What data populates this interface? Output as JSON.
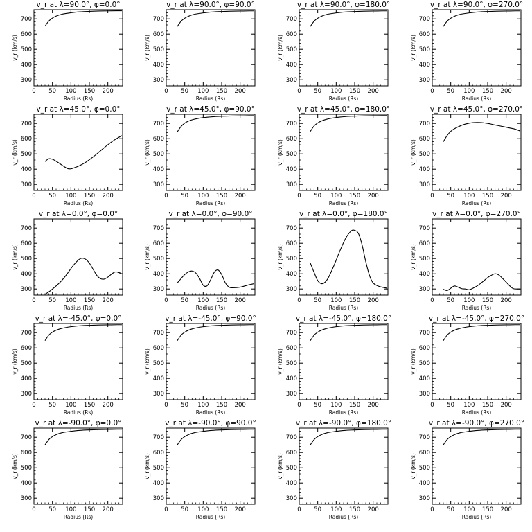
{
  "figure": {
    "xlabel": "Radius (Rs)",
    "ylabel": "v_r (km/s)"
  },
  "chart_data": [
    {
      "type": "line",
      "title": "v_r at λ=90.0°, φ=0.0°",
      "xlabel": "Radius (Rs)",
      "ylabel": "v_r (km/s)",
      "xlim": [
        0,
        240
      ],
      "ylim": [
        260,
        760
      ],
      "xticks": [
        0,
        50,
        100,
        150,
        200
      ],
      "yticks": [
        300,
        400,
        500,
        600,
        700
      ],
      "x": [
        30,
        40,
        50,
        60,
        75,
        100,
        125,
        150,
        175,
        200,
        225,
        238
      ],
      "y": [
        652,
        685,
        705,
        718,
        730,
        740,
        746,
        749,
        751,
        752,
        753,
        753
      ]
    },
    {
      "type": "line",
      "title": "v_r at λ=90.0°, φ=90.0°",
      "xlabel": "Radius (Rs)",
      "ylabel": "v_r (km/s)",
      "xlim": [
        0,
        240
      ],
      "ylim": [
        260,
        760
      ],
      "xticks": [
        0,
        50,
        100,
        150,
        200
      ],
      "yticks": [
        300,
        400,
        500,
        600,
        700
      ],
      "x": [
        30,
        40,
        50,
        60,
        75,
        100,
        125,
        150,
        175,
        200,
        225,
        238
      ],
      "y": [
        650,
        684,
        704,
        717,
        729,
        739,
        745,
        748,
        750,
        751,
        752,
        752
      ]
    },
    {
      "type": "line",
      "title": "v_r at λ=90.0°, φ=180.0°",
      "xlabel": "Radius (Rs)",
      "ylabel": "v_r (km/s)",
      "xlim": [
        0,
        240
      ],
      "ylim": [
        260,
        760
      ],
      "xticks": [
        0,
        50,
        100,
        150,
        200
      ],
      "yticks": [
        300,
        400,
        500,
        600,
        700
      ],
      "x": [
        30,
        40,
        50,
        60,
        75,
        100,
        125,
        150,
        175,
        200,
        225,
        238
      ],
      "y": [
        650,
        684,
        704,
        717,
        729,
        739,
        745,
        748,
        750,
        751,
        752,
        752
      ]
    },
    {
      "type": "line",
      "title": "v_r at λ=90.0°, φ=270.0°",
      "xlabel": "Radius (Rs)",
      "ylabel": "v_r (km/s)",
      "xlim": [
        0,
        240
      ],
      "ylim": [
        260,
        760
      ],
      "xticks": [
        0,
        50,
        100,
        150,
        200
      ],
      "yticks": [
        300,
        400,
        500,
        600,
        700
      ],
      "x": [
        30,
        40,
        50,
        60,
        75,
        100,
        125,
        150,
        175,
        200,
        225,
        238
      ],
      "y": [
        650,
        684,
        704,
        717,
        729,
        739,
        745,
        748,
        750,
        751,
        752,
        752
      ]
    },
    {
      "type": "line",
      "title": "v_r at λ=45.0°, φ=0.0°",
      "xlabel": "Radius (Rs)",
      "ylabel": "v_r (km/s)",
      "xlim": [
        0,
        240
      ],
      "ylim": [
        260,
        760
      ],
      "xticks": [
        0,
        50,
        100,
        150,
        200
      ],
      "yticks": [
        300,
        400,
        500,
        600,
        700
      ],
      "x": [
        30,
        40,
        50,
        60,
        75,
        90,
        100,
        110,
        125,
        140,
        160,
        180,
        200,
        220,
        238
      ],
      "y": [
        450,
        468,
        465,
        452,
        428,
        405,
        402,
        410,
        425,
        445,
        480,
        520,
        560,
        595,
        620
      ]
    },
    {
      "type": "line",
      "title": "v_r at λ=45.0°, φ=90.0°",
      "xlabel": "Radius (Rs)",
      "ylabel": "v_r (km/s)",
      "xlim": [
        0,
        240
      ],
      "ylim": [
        260,
        760
      ],
      "xticks": [
        0,
        50,
        100,
        150,
        200
      ],
      "yticks": [
        300,
        400,
        500,
        600,
        700
      ],
      "x": [
        30,
        40,
        50,
        60,
        75,
        100,
        125,
        150,
        175,
        200,
        225,
        238
      ],
      "y": [
        645,
        680,
        702,
        715,
        727,
        738,
        744,
        747,
        749,
        750,
        751,
        751
      ]
    },
    {
      "type": "line",
      "title": "v_r at λ=45.0°, φ=180.0°",
      "xlabel": "Radius (Rs)",
      "ylabel": "v_r (km/s)",
      "xlim": [
        0,
        240
      ],
      "ylim": [
        260,
        760
      ],
      "xticks": [
        0,
        50,
        100,
        150,
        200
      ],
      "yticks": [
        300,
        400,
        500,
        600,
        700
      ],
      "x": [
        30,
        40,
        50,
        60,
        75,
        100,
        125,
        150,
        175,
        200,
        225,
        238
      ],
      "y": [
        648,
        683,
        703,
        716,
        728,
        739,
        745,
        748,
        750,
        751,
        752,
        752
      ]
    },
    {
      "type": "line",
      "title": "v_r at λ=45.0°, φ=270.0°",
      "xlabel": "Radius (Rs)",
      "ylabel": "v_r (km/s)",
      "xlim": [
        0,
        240
      ],
      "ylim": [
        260,
        760
      ],
      "xticks": [
        0,
        50,
        100,
        150,
        200
      ],
      "yticks": [
        300,
        400,
        500,
        600,
        700
      ],
      "x": [
        30,
        40,
        50,
        60,
        75,
        90,
        110,
        130,
        150,
        170,
        190,
        210,
        225,
        238
      ],
      "y": [
        580,
        620,
        648,
        665,
        683,
        696,
        705,
        706,
        700,
        690,
        680,
        670,
        662,
        650
      ]
    },
    {
      "type": "line",
      "title": "v_r at λ=0.0°, φ=0.0°",
      "xlabel": "Radius (Rs)",
      "ylabel": "v_r (km/s)",
      "xlim": [
        0,
        240
      ],
      "ylim": [
        260,
        760
      ],
      "xticks": [
        0,
        50,
        100,
        150,
        200
      ],
      "yticks": [
        300,
        400,
        500,
        600,
        700
      ],
      "x": [
        30,
        45,
        60,
        75,
        90,
        105,
        120,
        130,
        140,
        150,
        160,
        170,
        180,
        190,
        200,
        210,
        220,
        230,
        238
      ],
      "y": [
        265,
        290,
        320,
        355,
        400,
        450,
        490,
        502,
        495,
        470,
        430,
        390,
        368,
        365,
        378,
        398,
        412,
        408,
        400
      ]
    },
    {
      "type": "line",
      "title": "v_r at λ=0.0°, φ=90.0°",
      "xlabel": "Radius (Rs)",
      "ylabel": "v_r (km/s)",
      "xlim": [
        0,
        240
      ],
      "ylim": [
        260,
        760
      ],
      "xticks": [
        0,
        50,
        100,
        150,
        200
      ],
      "yticks": [
        300,
        400,
        500,
        600,
        700
      ],
      "x": [
        30,
        40,
        50,
        60,
        70,
        80,
        90,
        100,
        110,
        120,
        130,
        140,
        150,
        160,
        170,
        180,
        200,
        220,
        238
      ],
      "y": [
        340,
        368,
        395,
        412,
        418,
        405,
        370,
        325,
        320,
        360,
        410,
        425,
        395,
        340,
        312,
        308,
        312,
        325,
        335
      ]
    },
    {
      "type": "line",
      "title": "v_r at λ=0.0°, φ=180.0°",
      "xlabel": "Radius (Rs)",
      "ylabel": "v_r (km/s)",
      "xlim": [
        0,
        240
      ],
      "ylim": [
        260,
        760
      ],
      "xticks": [
        0,
        50,
        100,
        150,
        200
      ],
      "yticks": [
        300,
        400,
        500,
        600,
        700
      ],
      "x": [
        30,
        40,
        50,
        60,
        70,
        80,
        95,
        110,
        125,
        140,
        150,
        160,
        170,
        180,
        190,
        200,
        215,
        238
      ],
      "y": [
        470,
        410,
        355,
        335,
        345,
        380,
        460,
        550,
        630,
        680,
        685,
        665,
        590,
        480,
        390,
        340,
        318,
        305
      ]
    },
    {
      "type": "line",
      "title": "v_r at λ=0.0°, φ=270.0°",
      "xlabel": "Radius (Rs)",
      "ylabel": "v_r (km/s)",
      "xlim": [
        0,
        240
      ],
      "ylim": [
        260,
        760
      ],
      "xticks": [
        0,
        50,
        100,
        150,
        200
      ],
      "yticks": [
        300,
        400,
        500,
        600,
        700
      ],
      "x": [
        30,
        40,
        50,
        60,
        70,
        80,
        90,
        100,
        110,
        120,
        130,
        140,
        150,
        160,
        170,
        180,
        190,
        200,
        210,
        220,
        238
      ],
      "y": [
        298,
        290,
        305,
        320,
        312,
        302,
        300,
        295,
        305,
        318,
        335,
        355,
        375,
        390,
        400,
        392,
        370,
        345,
        320,
        302,
        300
      ]
    },
    {
      "type": "line",
      "title": "v_r at λ=-45.0°, φ=0.0°",
      "xlabel": "Radius (Rs)",
      "ylabel": "v_r (km/s)",
      "xlim": [
        0,
        240
      ],
      "ylim": [
        260,
        760
      ],
      "xticks": [
        0,
        50,
        100,
        150,
        200
      ],
      "yticks": [
        300,
        400,
        500,
        600,
        700
      ],
      "x": [
        30,
        40,
        50,
        60,
        75,
        100,
        125,
        150,
        175,
        200,
        225,
        238
      ],
      "y": [
        648,
        683,
        703,
        716,
        728,
        739,
        745,
        748,
        750,
        751,
        752,
        752
      ]
    },
    {
      "type": "line",
      "title": "v_r at λ=-45.0°, φ=90.0°",
      "xlabel": "Radius (Rs)",
      "ylabel": "v_r (km/s)",
      "xlim": [
        0,
        240
      ],
      "ylim": [
        260,
        760
      ],
      "xticks": [
        0,
        50,
        100,
        150,
        200
      ],
      "yticks": [
        300,
        400,
        500,
        600,
        700
      ],
      "x": [
        30,
        40,
        50,
        60,
        75,
        100,
        125,
        150,
        175,
        200,
        225,
        238
      ],
      "y": [
        648,
        683,
        703,
        716,
        728,
        739,
        745,
        748,
        750,
        751,
        752,
        752
      ]
    },
    {
      "type": "line",
      "title": "v_r at λ=-45.0°, φ=180.0°",
      "xlabel": "Radius (Rs)",
      "ylabel": "v_r (km/s)",
      "xlim": [
        0,
        240
      ],
      "ylim": [
        260,
        760
      ],
      "xticks": [
        0,
        50,
        100,
        150,
        200
      ],
      "yticks": [
        300,
        400,
        500,
        600,
        700
      ],
      "x": [
        30,
        40,
        50,
        60,
        75,
        100,
        125,
        150,
        175,
        200,
        225,
        238
      ],
      "y": [
        648,
        683,
        703,
        716,
        728,
        739,
        745,
        748,
        750,
        751,
        752,
        752
      ]
    },
    {
      "type": "line",
      "title": "v_r at λ=-45.0°, φ=270.0°",
      "xlabel": "Radius (Rs)",
      "ylabel": "v_r (km/s)",
      "xlim": [
        0,
        240
      ],
      "ylim": [
        260,
        760
      ],
      "xticks": [
        0,
        50,
        100,
        150,
        200
      ],
      "yticks": [
        300,
        400,
        500,
        600,
        700
      ],
      "x": [
        30,
        40,
        50,
        60,
        75,
        100,
        125,
        150,
        175,
        200,
        225,
        238
      ],
      "y": [
        648,
        683,
        703,
        716,
        728,
        739,
        745,
        748,
        750,
        751,
        752,
        752
      ]
    },
    {
      "type": "line",
      "title": "v_r at λ=-90.0°, φ=0.0°",
      "xlabel": "Radius (Rs)",
      "ylabel": "v_r (km/s)",
      "xlim": [
        0,
        240
      ],
      "ylim": [
        260,
        760
      ],
      "xticks": [
        0,
        50,
        100,
        150,
        200
      ],
      "yticks": [
        300,
        400,
        500,
        600,
        700
      ],
      "x": [
        30,
        40,
        50,
        60,
        75,
        100,
        125,
        150,
        175,
        200,
        225,
        238
      ],
      "y": [
        650,
        684,
        704,
        717,
        729,
        739,
        745,
        748,
        750,
        751,
        752,
        752
      ]
    },
    {
      "type": "line",
      "title": "v_r at λ=-90.0°, φ=90.0°",
      "xlabel": "Radius (Rs)",
      "ylabel": "v_r (km/s)",
      "xlim": [
        0,
        240
      ],
      "ylim": [
        260,
        760
      ],
      "xticks": [
        0,
        50,
        100,
        150,
        200
      ],
      "yticks": [
        300,
        400,
        500,
        600,
        700
      ],
      "x": [
        30,
        40,
        50,
        60,
        75,
        100,
        125,
        150,
        175,
        200,
        225,
        238
      ],
      "y": [
        650,
        684,
        704,
        717,
        729,
        739,
        745,
        748,
        750,
        751,
        752,
        752
      ]
    },
    {
      "type": "line",
      "title": "v_r at λ=-90.0°, φ=180.0°",
      "xlabel": "Radius (Rs)",
      "ylabel": "v_r (km/s)",
      "xlim": [
        0,
        240
      ],
      "ylim": [
        260,
        760
      ],
      "xticks": [
        0,
        50,
        100,
        150,
        200
      ],
      "yticks": [
        300,
        400,
        500,
        600,
        700
      ],
      "x": [
        30,
        40,
        50,
        60,
        75,
        100,
        125,
        150,
        175,
        200,
        225,
        238
      ],
      "y": [
        650,
        684,
        704,
        717,
        729,
        739,
        745,
        748,
        750,
        751,
        752,
        752
      ]
    },
    {
      "type": "line",
      "title": "v_r at λ=-90.0°, φ=270.0°",
      "xlabel": "Radius (Rs)",
      "ylabel": "v_r (km/s)",
      "xlim": [
        0,
        240
      ],
      "ylim": [
        260,
        760
      ],
      "xticks": [
        0,
        50,
        100,
        150,
        200
      ],
      "yticks": [
        300,
        400,
        500,
        600,
        700
      ],
      "x": [
        30,
        40,
        50,
        60,
        75,
        100,
        125,
        150,
        175,
        200,
        225,
        238
      ],
      "y": [
        650,
        684,
        704,
        717,
        729,
        739,
        745,
        748,
        750,
        751,
        752,
        752
      ]
    }
  ]
}
